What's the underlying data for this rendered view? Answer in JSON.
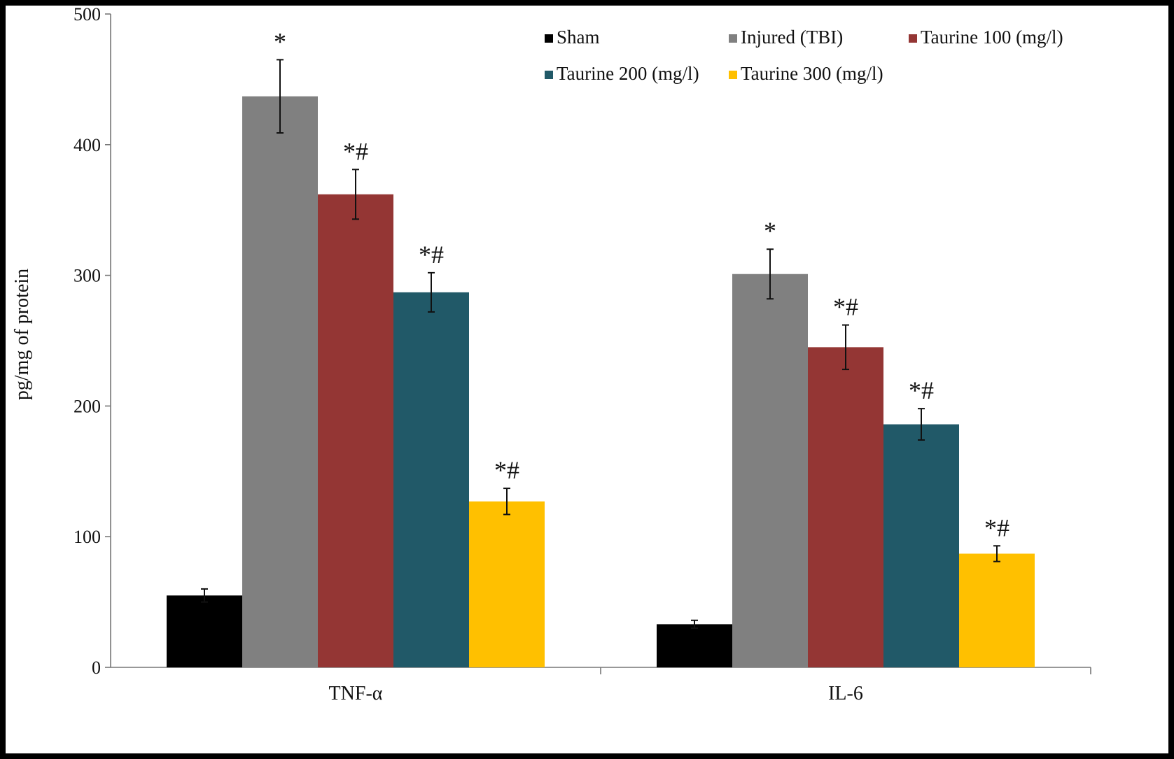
{
  "chart_data": {
    "type": "bar",
    "title": "",
    "xlabel": "",
    "ylabel": "pg/mg of protein",
    "ylim": [
      0,
      500
    ],
    "yticks": [
      0,
      100,
      200,
      300,
      400,
      500
    ],
    "grid": false,
    "legend_position": "top-right",
    "categories": [
      "TNF-α",
      "IL-6"
    ],
    "series": [
      {
        "name": "Sham",
        "color": "#000000",
        "values": [
          55,
          33
        ],
        "errors": [
          5,
          3
        ],
        "annotations": [
          "",
          ""
        ]
      },
      {
        "name": "Injured (TBI)",
        "color": "#808080",
        "values": [
          437,
          301
        ],
        "errors": [
          28,
          19
        ],
        "annotations": [
          "*",
          "*"
        ]
      },
      {
        "name": "Taurine 100 (mg/l)",
        "color": "#943634",
        "values": [
          362,
          245
        ],
        "errors": [
          19,
          17
        ],
        "annotations": [
          "*#",
          "*#"
        ]
      },
      {
        "name": "Taurine 200 (mg/l)",
        "color": "#215968",
        "values": [
          287,
          186
        ],
        "errors": [
          15,
          12
        ],
        "annotations": [
          "*#",
          "*#"
        ]
      },
      {
        "name": "Taurine 300 (mg/l)",
        "color": "#FFC000",
        "values": [
          127,
          87
        ],
        "errors": [
          10,
          6
        ],
        "annotations": [
          "*#",
          "*#"
        ]
      }
    ]
  }
}
